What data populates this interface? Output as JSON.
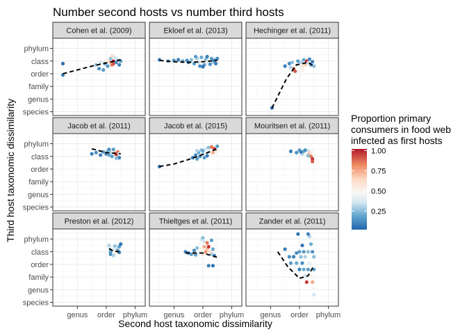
{
  "chart_data": {
    "type": "scatter",
    "title": "Number second hosts vs number third hosts",
    "xlabel": "Second host taxonomic dissimilarity",
    "ylabel": "Third host taxonomic dissimilarity",
    "x_ticks": [
      "genus",
      "order",
      "phylum"
    ],
    "y_ticks": [
      "phylum",
      "class",
      "order",
      "family",
      "genus",
      "species"
    ],
    "legend": {
      "title_lines": [
        "Proportion primary",
        "consumers in food web",
        "infected as first hosts"
      ],
      "labels": [
        "1.00",
        "0.75",
        "0.50",
        "0.25"
      ],
      "values": [
        1.0,
        0.75,
        0.5,
        0.25
      ],
      "colors": [
        "#b2182b",
        "#ef8a62",
        "#fddbc7",
        "#f7f7f7",
        "#d1e5f0",
        "#67a9cf",
        "#2166ac"
      ],
      "position": "right"
    },
    "scale_note": "x: 1=species ... 6=phylum; y: 1=species ... 6=phylum",
    "panels": [
      {
        "name": "Cohen et al. (2009)",
        "trend": [
          [
            1,
            4
          ],
          [
            2,
            4.3
          ],
          [
            3,
            4.6
          ],
          [
            4,
            4.85
          ],
          [
            5,
            5.1
          ]
        ],
        "points": [
          [
            1,
            4.8,
            0.05
          ],
          [
            1,
            3.9,
            0.1
          ],
          [
            3.3,
            4.7,
            0.3
          ],
          [
            3.6,
            4.9,
            0.4
          ],
          [
            3.9,
            4.8,
            0.25
          ],
          [
            4.0,
            5.1,
            0.55
          ],
          [
            4.1,
            4.6,
            0.2
          ],
          [
            4.2,
            5.0,
            0.6
          ],
          [
            4.3,
            4.9,
            0.7
          ],
          [
            4.3,
            5.2,
            0.3
          ],
          [
            4.4,
            4.7,
            0.85
          ],
          [
            4.5,
            5.0,
            0.95
          ],
          [
            4.5,
            4.8,
            0.9
          ],
          [
            4.6,
            5.3,
            0.4
          ],
          [
            4.7,
            4.9,
            0.15
          ],
          [
            4.8,
            5.1,
            0.35
          ],
          [
            3.8,
            4.3,
            0.2
          ],
          [
            4.1,
            5.3,
            0.5
          ],
          [
            4.9,
            4.7,
            0.1
          ],
          [
            5.0,
            5.0,
            0.2
          ],
          [
            4.4,
            5.4,
            0.65
          ],
          [
            3.5,
            4.4,
            0.15
          ]
        ]
      },
      {
        "name": "Ekloef et al. (2013)",
        "trend": [
          [
            1,
            5.05
          ],
          [
            2,
            4.95
          ],
          [
            3,
            4.9
          ],
          [
            4,
            4.95
          ],
          [
            5,
            5.05
          ]
        ],
        "points": [
          [
            1,
            5.1,
            0.1
          ],
          [
            1.6,
            5.0,
            0.2
          ],
          [
            2.0,
            5.05,
            0.15
          ],
          [
            2.3,
            5.1,
            0.1
          ],
          [
            2.6,
            5.0,
            0.2
          ],
          [
            2.9,
            5.05,
            0.15
          ],
          [
            3.0,
            4.9,
            0.1
          ],
          [
            3.2,
            5.1,
            0.3
          ],
          [
            3.4,
            4.8,
            0.2
          ],
          [
            3.6,
            5.2,
            0.35
          ],
          [
            3.7,
            4.9,
            0.4
          ],
          [
            3.8,
            4.6,
            0.15
          ],
          [
            3.9,
            5.3,
            0.25
          ],
          [
            4.0,
            5.0,
            0.5
          ],
          [
            4.1,
            4.7,
            0.2
          ],
          [
            4.2,
            5.15,
            0.3
          ],
          [
            4.3,
            4.85,
            0.45
          ],
          [
            4.3,
            5.35,
            0.1
          ],
          [
            4.4,
            5.0,
            0.55
          ],
          [
            4.5,
            4.75,
            0.15
          ],
          [
            4.6,
            5.2,
            0.2
          ],
          [
            4.7,
            4.9,
            0.35
          ],
          [
            4.8,
            5.05,
            0.05
          ],
          [
            4.9,
            4.8,
            0.1
          ],
          [
            5.0,
            5.2,
            0.15
          ],
          [
            3.5,
            5.35,
            0.2
          ],
          [
            4.0,
            4.55,
            0.05
          ]
        ]
      },
      {
        "name": "Hechinger et al. (2011)",
        "trend": [
          [
            2.1,
            1.3
          ],
          [
            3.1,
            3.6
          ],
          [
            3.8,
            4.7
          ],
          [
            4.6,
            4.9
          ],
          [
            5,
            4.6
          ]
        ],
        "points": [
          [
            2.1,
            1.3,
            0.05
          ],
          [
            3.0,
            4.6,
            0.1
          ],
          [
            3.3,
            4.8,
            0.15
          ],
          [
            3.5,
            4.9,
            0.3
          ],
          [
            3.6,
            4.4,
            0.85
          ],
          [
            3.7,
            4.2,
            0.9
          ],
          [
            3.8,
            4.7,
            0.45
          ],
          [
            3.9,
            5.0,
            0.2
          ],
          [
            4.0,
            4.5,
            0.5
          ],
          [
            4.1,
            4.9,
            0.35
          ],
          [
            4.2,
            4.6,
            0.6
          ],
          [
            4.3,
            5.1,
            0.25
          ],
          [
            4.4,
            4.75,
            0.7
          ],
          [
            4.5,
            5.0,
            0.95
          ],
          [
            4.6,
            4.85,
            0.4
          ],
          [
            4.7,
            5.15,
            0.15
          ],
          [
            4.8,
            4.7,
            0.2
          ],
          [
            4.9,
            4.95,
            0.1
          ],
          [
            5.0,
            4.6,
            0.3
          ],
          [
            4.2,
            4.3,
            0.55
          ],
          [
            3.4,
            4.5,
            0.35
          ]
        ]
      },
      {
        "name": "Jacob et al. (2011)",
        "trend": [
          [
            3.0,
            5.6
          ],
          [
            4.0,
            5.3
          ],
          [
            5.0,
            5.2
          ]
        ],
        "points": [
          [
            3.0,
            5.2,
            0.1
          ],
          [
            3.3,
            5.3,
            0.15
          ],
          [
            3.6,
            5.1,
            0.1
          ],
          [
            3.8,
            5.35,
            0.2
          ],
          [
            4.0,
            5.2,
            0.1
          ],
          [
            4.1,
            5.45,
            0.3
          ],
          [
            4.2,
            5.1,
            0.25
          ],
          [
            4.3,
            5.3,
            0.35
          ],
          [
            4.4,
            5.0,
            0.2
          ],
          [
            4.5,
            5.4,
            0.55
          ],
          [
            4.6,
            5.25,
            0.8
          ],
          [
            4.7,
            5.15,
            0.95
          ],
          [
            4.8,
            5.35,
            0.85
          ],
          [
            4.9,
            5.2,
            0.4
          ],
          [
            4.9,
            4.9,
            0.1
          ],
          [
            4.5,
            5.55,
            0.2
          ],
          [
            4.2,
            5.55,
            0.15
          ],
          [
            4.7,
            4.85,
            0.3
          ]
        ]
      },
      {
        "name": "Jacob et al. (2015)",
        "trend": [
          [
            1,
            4.2
          ],
          [
            2,
            4.4
          ],
          [
            3,
            4.75
          ],
          [
            4,
            5.15
          ],
          [
            5,
            5.6
          ]
        ],
        "points": [
          [
            1,
            4.2,
            0.05
          ],
          [
            3.3,
            4.9,
            0.1
          ],
          [
            3.5,
            5.1,
            0.15
          ],
          [
            3.6,
            4.8,
            0.2
          ],
          [
            3.7,
            5.3,
            0.25
          ],
          [
            3.8,
            5.0,
            0.15
          ],
          [
            3.9,
            5.5,
            0.3
          ],
          [
            4.0,
            5.2,
            0.35
          ],
          [
            4.1,
            4.9,
            0.2
          ],
          [
            4.2,
            5.6,
            0.4
          ],
          [
            4.3,
            5.3,
            0.45
          ],
          [
            4.4,
            5.7,
            0.3
          ],
          [
            4.5,
            5.45,
            0.5
          ],
          [
            4.6,
            5.75,
            0.85
          ],
          [
            4.7,
            5.3,
            0.75
          ],
          [
            4.8,
            5.6,
            0.95
          ],
          [
            4.9,
            5.4,
            0.6
          ],
          [
            5.0,
            5.8,
            0.2
          ],
          [
            4.3,
            5.05,
            0.1
          ],
          [
            4.0,
            5.45,
            0.25
          ],
          [
            3.6,
            5.45,
            0.35
          ]
        ]
      },
      {
        "name": "Mouritsen et al. (2011)",
        "trend": [],
        "points": [
          [
            3.4,
            5.4,
            0.1
          ],
          [
            3.8,
            5.3,
            0.15
          ],
          [
            4.0,
            5.5,
            0.2
          ],
          [
            4.2,
            5.2,
            0.35
          ],
          [
            4.3,
            5.4,
            0.25
          ],
          [
            4.5,
            5.1,
            0.55
          ],
          [
            4.6,
            5.45,
            0.4
          ],
          [
            4.7,
            5.25,
            0.7
          ],
          [
            4.8,
            5.0,
            0.85
          ],
          [
            4.9,
            4.8,
            0.95
          ],
          [
            4.9,
            4.6,
            0.9
          ],
          [
            4.8,
            5.35,
            0.6
          ],
          [
            4.6,
            5.05,
            0.3
          ],
          [
            4.4,
            5.5,
            0.15
          ],
          [
            4.1,
            5.35,
            0.1
          ],
          [
            4.9,
            5.45,
            0.5
          ]
        ]
      },
      {
        "name": "Preston et al. (2012)",
        "trend": [
          [
            4.2,
            5.25
          ],
          [
            4.5,
            5.05
          ],
          [
            4.9,
            5.0
          ]
        ],
        "points": [
          [
            4.2,
            5.5,
            0.35
          ],
          [
            4.3,
            5.2,
            0.3
          ],
          [
            4.3,
            5.0,
            0.2
          ],
          [
            4.3,
            4.8,
            0.15
          ],
          [
            4.4,
            5.35,
            0.5
          ],
          [
            4.5,
            5.15,
            0.45
          ],
          [
            4.6,
            5.45,
            0.3
          ],
          [
            4.6,
            4.9,
            0.55
          ],
          [
            4.7,
            5.25,
            0.4
          ],
          [
            4.8,
            5.1,
            0.25
          ],
          [
            4.9,
            5.4,
            0.2
          ],
          [
            4.9,
            4.95,
            0.1
          ],
          [
            5.0,
            5.6,
            0.05
          ],
          [
            4.5,
            4.7,
            0.35
          ]
        ]
      },
      {
        "name": "Thieltges et al. (2011)",
        "trend": [
          [
            2.8,
            4.9
          ],
          [
            4.0,
            4.9
          ],
          [
            5,
            4.55
          ]
        ],
        "points": [
          [
            2.8,
            5.0,
            0.1
          ],
          [
            3.0,
            4.9,
            0.15
          ],
          [
            3.2,
            4.8,
            0.2
          ],
          [
            3.4,
            5.1,
            0.15
          ],
          [
            3.5,
            4.75,
            0.25
          ],
          [
            3.6,
            5.3,
            0.3
          ],
          [
            3.7,
            4.9,
            0.45
          ],
          [
            3.8,
            5.6,
            0.5
          ],
          [
            3.9,
            5.2,
            0.55
          ],
          [
            4.0,
            4.8,
            0.6
          ],
          [
            4.1,
            5.8,
            0.4
          ],
          [
            4.1,
            5.4,
            0.75
          ],
          [
            4.2,
            5.0,
            0.8
          ],
          [
            4.3,
            5.7,
            0.85
          ],
          [
            4.3,
            5.2,
            0.7
          ],
          [
            4.4,
            4.6,
            0.5
          ],
          [
            4.4,
            5.4,
            0.95
          ],
          [
            4.5,
            5.0,
            0.65
          ],
          [
            4.6,
            4.8,
            0.35
          ],
          [
            4.6,
            5.9,
            0.2
          ],
          [
            4.7,
            5.2,
            0.25
          ],
          [
            4.8,
            4.7,
            0.15
          ],
          [
            4.4,
            3.9,
            0.1
          ],
          [
            4.7,
            3.9,
            0.05
          ],
          [
            3.9,
            5.95,
            0.4
          ],
          [
            4.0,
            6.1,
            0.3
          ]
        ]
      },
      {
        "name": "Zander et al. (2011)",
        "trend": [
          [
            2.5,
            5.0
          ],
          [
            3.2,
            3.8
          ],
          [
            4.0,
            2.9
          ],
          [
            4.6,
            3.1
          ],
          [
            5.0,
            3.9
          ]
        ],
        "points": [
          [
            3.0,
            5.2,
            0.1
          ],
          [
            3.3,
            4.6,
            0.15
          ],
          [
            3.4,
            4.1,
            0.2
          ],
          [
            3.6,
            4.6,
            0.1
          ],
          [
            3.8,
            4.9,
            0.15
          ],
          [
            3.8,
            4.1,
            0.25
          ],
          [
            3.9,
            6.4,
            0.05
          ],
          [
            4.0,
            3.6,
            0.1
          ],
          [
            4.0,
            5.0,
            0.2
          ],
          [
            4.1,
            4.6,
            0.3
          ],
          [
            4.2,
            4.1,
            0.15
          ],
          [
            4.3,
            5.0,
            0.2
          ],
          [
            4.3,
            3.6,
            0.25
          ],
          [
            4.4,
            4.6,
            0.35
          ],
          [
            4.4,
            3.1,
            0.4
          ],
          [
            4.5,
            2.6,
            0.95
          ],
          [
            4.6,
            5.0,
            0.3
          ],
          [
            4.6,
            3.6,
            0.2
          ],
          [
            4.7,
            6.2,
            0.35
          ],
          [
            4.7,
            4.1,
            0.45
          ],
          [
            4.8,
            5.6,
            0.25
          ],
          [
            4.8,
            3.1,
            0.55
          ],
          [
            4.9,
            5.0,
            0.15
          ],
          [
            4.9,
            2.6,
            0.75
          ],
          [
            5.0,
            4.6,
            0.3
          ],
          [
            5.0,
            3.6,
            0.2
          ],
          [
            5.0,
            2.1,
            0.5
          ],
          [
            5.0,
            1.6,
            0.4
          ],
          [
            4.6,
            6.4,
            0.1
          ],
          [
            4.2,
            5.5,
            0.05
          ]
        ]
      }
    ]
  }
}
